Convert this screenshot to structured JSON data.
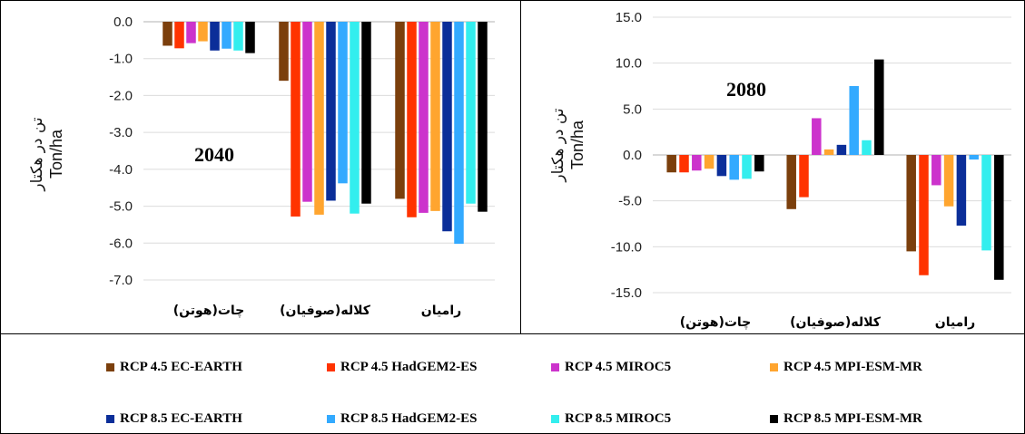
{
  "colors": [
    "#7b3f0c",
    "#ff3300",
    "#cc33cc",
    "#ffa52f",
    "#0b2e99",
    "#33aaff",
    "#33eeee",
    "#000000"
  ],
  "chart_data": [
    {
      "type": "bar",
      "title": "2040",
      "ylabel_fa": "تن در هکتار",
      "ylabel_en": "Ton/ha",
      "categories": [
        "چات(هوتن)",
        "کلاله(صوفیان)",
        "رامیان"
      ],
      "yticks": [
        "0.0",
        "-1.0",
        "-2.0",
        "-3.0",
        "-4.0",
        "-5.0",
        "-6.0",
        "-7.0"
      ],
      "ylim": [
        -7,
        0
      ],
      "grid": true,
      "series": [
        {
          "name": "RCP 4.5 EC-EARTH",
          "values": [
            -0.65,
            -1.6,
            -4.8
          ]
        },
        {
          "name": "RCP 4.5 HadGEM2-ES",
          "values": [
            -0.72,
            -5.28,
            -5.3
          ]
        },
        {
          "name": "RCP 4.5 MIROC5",
          "values": [
            -0.58,
            -4.88,
            -5.18
          ]
        },
        {
          "name": "RCP 4.5 MPI-ESM-MR",
          "values": [
            -0.53,
            -5.23,
            -5.13
          ]
        },
        {
          "name": "RCP 8.5 EC-EARTH",
          "values": [
            -0.78,
            -4.85,
            -5.68
          ]
        },
        {
          "name": "RCP 8.5 HadGEM2-ES",
          "values": [
            -0.73,
            -4.38,
            -6.02
          ]
        },
        {
          "name": "RCP 8.5 MIROC5",
          "values": [
            -0.78,
            -5.2,
            -4.93
          ]
        },
        {
          "name": "RCP 8.5 MPI-ESM-MR",
          "values": [
            -0.85,
            -4.93,
            -5.15
          ]
        }
      ]
    },
    {
      "type": "bar",
      "title": "2080",
      "ylabel_fa": "تن در هکتار",
      "ylabel_en": "Ton/ha",
      "categories": [
        "چات(هوتن)",
        "کلاله(صوفیان)",
        "رامیان"
      ],
      "yticks": [
        "15.0",
        "10.0",
        "5.0",
        "0.0",
        "-5.0",
        "-10.0",
        "-15.0"
      ],
      "ylim": [
        -15,
        15
      ],
      "grid": true,
      "series": [
        {
          "name": "RCP 4.5 EC-EARTH",
          "values": [
            -1.9,
            -5.9,
            -10.5
          ]
        },
        {
          "name": "RCP 4.5 HadGEM2-ES",
          "values": [
            -1.9,
            -4.6,
            -13.1
          ]
        },
        {
          "name": "RCP 4.5 MIROC5",
          "values": [
            -1.7,
            4.0,
            -3.3
          ]
        },
        {
          "name": "RCP 4.5 MPI-ESM-MR",
          "values": [
            -1.5,
            0.6,
            -5.6
          ]
        },
        {
          "name": "RCP 8.5 EC-EARTH",
          "values": [
            -2.3,
            1.1,
            -7.7
          ]
        },
        {
          "name": "RCP 8.5 HadGEM2-ES",
          "values": [
            -2.7,
            7.5,
            -0.5
          ]
        },
        {
          "name": "RCP 8.5 MIROC5",
          "values": [
            -2.6,
            1.6,
            -10.4
          ]
        },
        {
          "name": "RCP 8.5 MPI-ESM-MR",
          "values": [
            -1.8,
            10.4,
            -13.6
          ]
        }
      ]
    }
  ],
  "legend": [
    "RCP 4.5 EC-EARTH",
    "RCP 4.5 HadGEM2-ES",
    "RCP 4.5 MIROC5",
    "RCP 4.5 MPI-ESM-MR",
    "RCP 8.5 EC-EARTH",
    "RCP 8.5 HadGEM2-ES",
    "RCP 8.5 MIROC5",
    "RCP 8.5 MPI-ESM-MR"
  ]
}
